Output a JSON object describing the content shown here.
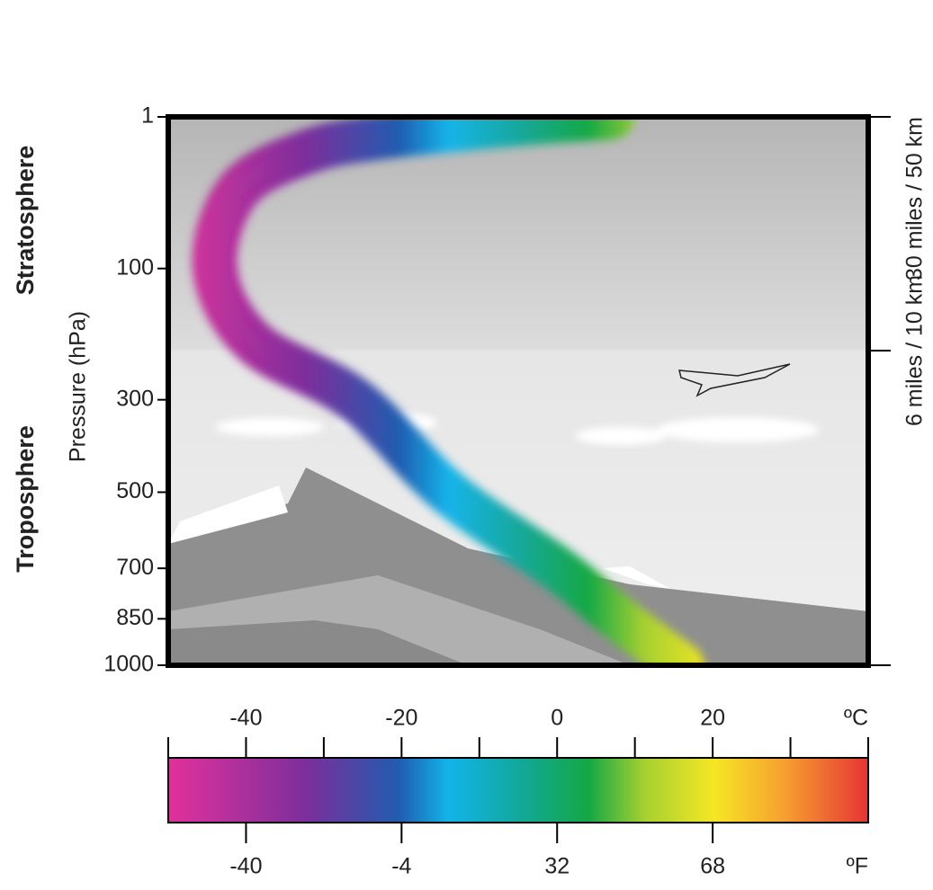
{
  "chart_data": {
    "type": "line",
    "x": [
      7,
      -5,
      -22,
      -32,
      -41,
      -44,
      -39,
      -26,
      -14,
      0,
      8,
      16
    ],
    "y": [
      1,
      2,
      5,
      10,
      30,
      100,
      200,
      300,
      500,
      700,
      850,
      1000
    ],
    "xlim": [
      -50,
      40
    ],
    "xticks": [
      -40,
      -20,
      0,
      20
    ],
    "xminorticks": [
      -50,
      -30,
      -10,
      10,
      30,
      40
    ],
    "xunit": "ºC",
    "x2lim": [
      -58,
      104
    ],
    "x2ticks": [
      -40,
      -4,
      32,
      68
    ],
    "x2unit": "ºF",
    "ylim": [
      1,
      1000
    ],
    "yticks": [
      1,
      100,
      300,
      500,
      700,
      850,
      1000
    ],
    "ylabel": "Pressure (hPa)",
    "layers": [
      "Stratosphere",
      "Troposphere"
    ],
    "altitude_labels": [
      "30 miles / 50 km",
      "6 miles / 10 km"
    ]
  }
}
